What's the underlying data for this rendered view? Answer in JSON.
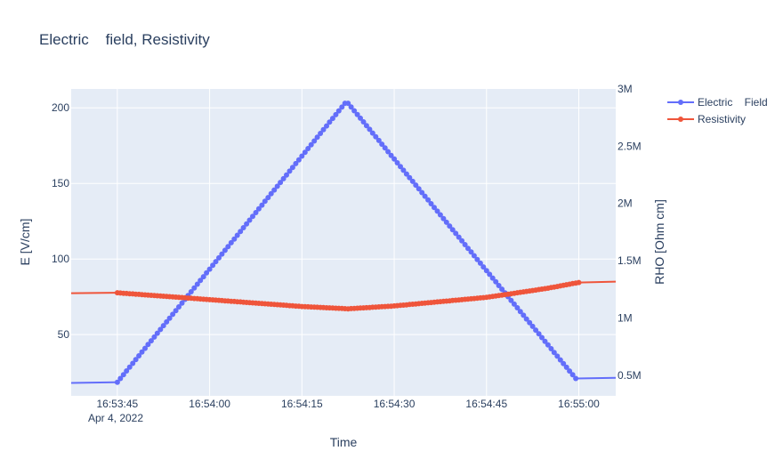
{
  "chart_data": {
    "type": "line",
    "title": "Electric    field, Resistivity",
    "xlabel": "Time",
    "ylabel": "E [V/cm]",
    "y2label": "RHO [Ohm cm]",
    "x_date_label": "Apr 4, 2022",
    "x_ticks": [
      "16:53:45",
      "16:54:00",
      "16:54:15",
      "16:54:30",
      "16:54:45",
      "16:55:00"
    ],
    "y_ticks": [
      "50",
      "100",
      "150",
      "200"
    ],
    "y2_ticks": [
      "0.5M",
      "1M",
      "1.5M",
      "2M",
      "2.5M",
      "3M"
    ],
    "y_range": [
      9.5,
      212.5
    ],
    "y2_range": [
      320000,
      3000000
    ],
    "x_range_seconds_of_day": [
      "16:53:37.5",
      "16:55:06"
    ],
    "grid": true,
    "legend_position": "top-right",
    "series": [
      {
        "name": "Electric    Field",
        "color": "#636efa",
        "axis": "y",
        "x": [
          "16:53:36",
          "16:53:45",
          "16:54:22",
          "16:54:22.5",
          "16:54:59.5",
          "16:55:08"
        ],
        "values": [
          18,
          18.5,
          203,
          203,
          21,
          21.5
        ],
        "marker_start": "16:53:45",
        "marker_end": "16:54:59.5",
        "marker_step_s": 0.5
      },
      {
        "name": "Resistivity",
        "color": "#ef553b",
        "axis": "y2",
        "x": [
          "16:53:36",
          "16:53:45",
          "16:54:00",
          "16:54:15",
          "16:54:22.5",
          "16:54:30",
          "16:54:45",
          "16:54:55",
          "16:55:00",
          "16:55:08"
        ],
        "values": [
          1215000,
          1220000,
          1160000,
          1100000,
          1080000,
          1105000,
          1180000,
          1260000,
          1310000,
          1320000
        ],
        "marker_start": "16:53:45",
        "marker_end": "16:55:00",
        "marker_step_s": 0.5
      }
    ]
  }
}
